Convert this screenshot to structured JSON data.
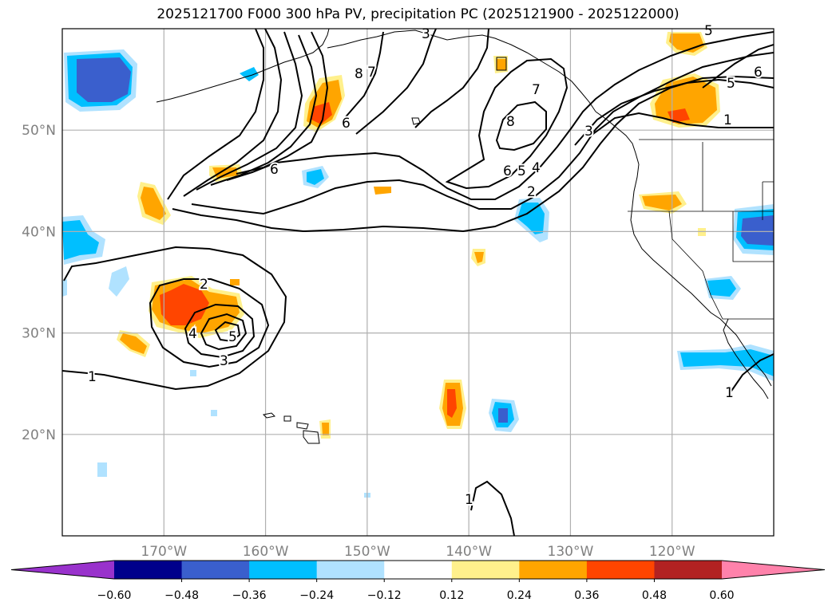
{
  "title": "2025121700 F000 300 hPa PV, precipitation PC (2025121900 - 2025122000)",
  "map": {
    "projection": "PlateCarree",
    "lon_range": [
      -180,
      -110
    ],
    "lat_range": [
      10,
      60
    ],
    "gridlines": true,
    "lon_ticks": [
      -170,
      -160,
      -150,
      -140,
      -130,
      -120
    ],
    "lat_ticks": [
      20,
      30,
      40,
      50
    ],
    "lon_tick_labels": [
      "170°W",
      "160°W",
      "150°W",
      "140°W",
      "130°W",
      "120°W"
    ],
    "lat_tick_labels": [
      "20°N",
      "30°N",
      "40°N",
      "50°N"
    ],
    "pv_contour_labels": [
      "1",
      "2",
      "3",
      "4",
      "5",
      "6",
      "7",
      "8"
    ]
  },
  "colorbar": {
    "orientation": "horizontal",
    "extend": "both",
    "levels": [
      -0.6,
      -0.48,
      -0.36,
      -0.24,
      -0.12,
      0.12,
      0.24,
      0.36,
      0.48,
      0.6
    ],
    "tick_labels": [
      "−0.60",
      "−0.48",
      "−0.36",
      "−0.24",
      "−0.12",
      "0.12",
      "0.24",
      "0.36",
      "0.48",
      "0.60"
    ],
    "colors": [
      "#9932cc",
      "#00008b",
      "#3a5fcd",
      "#00bfff",
      "#b0e2ff",
      "#ffffff",
      "#fff08c",
      "#ffa500",
      "#ff4500",
      "#b22222",
      "#ff82ab"
    ]
  },
  "colors": {
    "contour": "#000000",
    "grid": "#b0b0b0",
    "coast": "#000000"
  }
}
